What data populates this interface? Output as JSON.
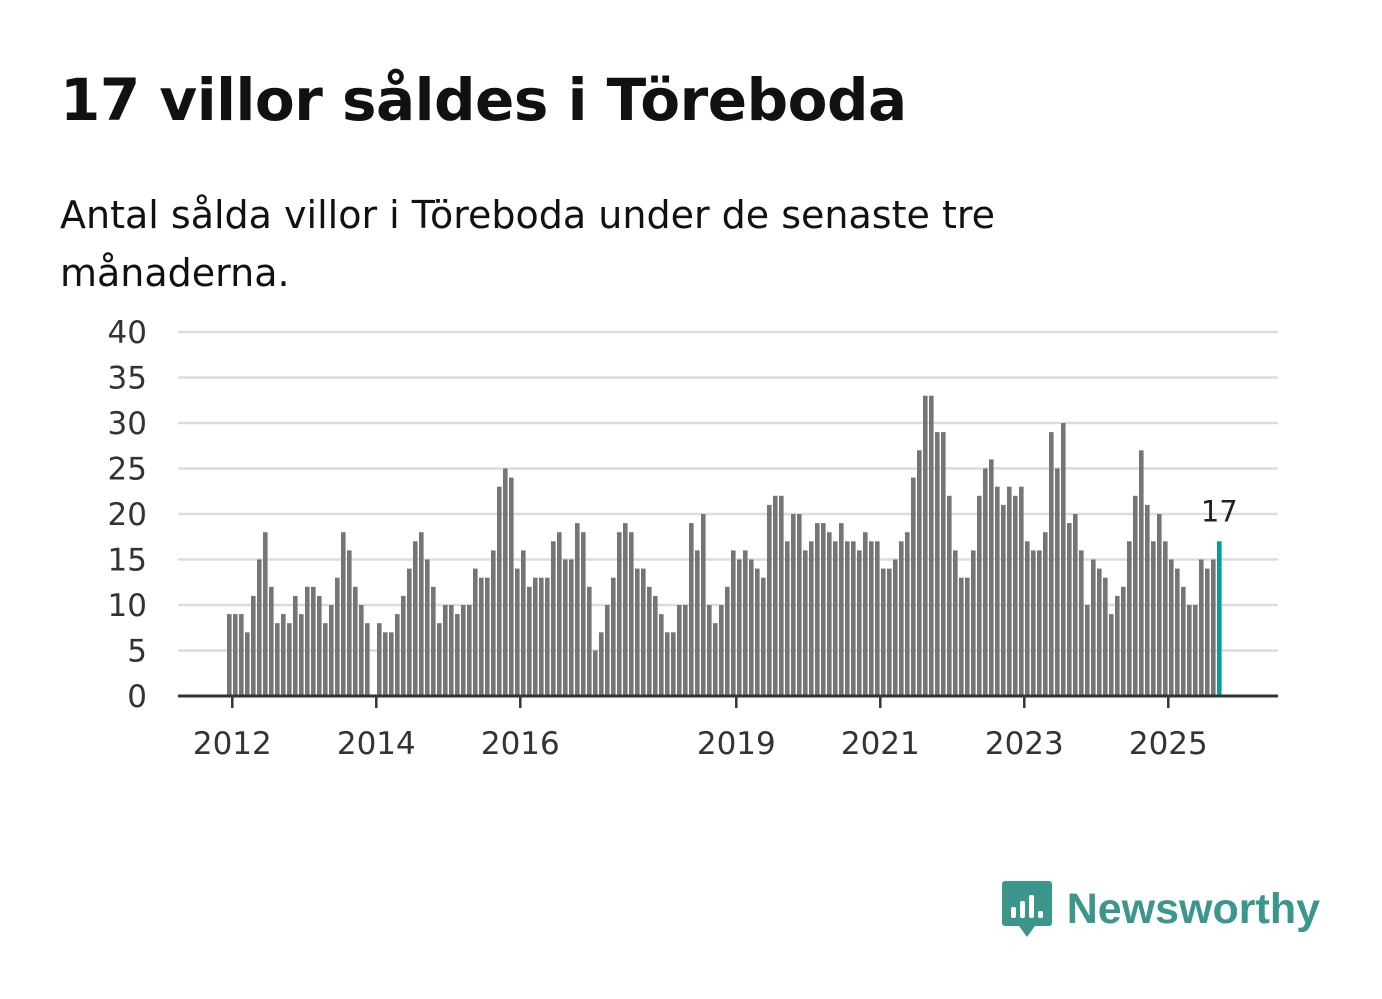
{
  "title": "17 villor såldes i Töreboda",
  "subtitle": "Antal sålda villor i Töreboda under de senaste tre månaderna.",
  "brand": {
    "name": "Newsworthy",
    "icon": "newsworthy-logo-icon"
  },
  "colors": {
    "bar": "#757477",
    "highlight": "#0e9a9a",
    "grid": "#dcdcdc",
    "axis": "#333333",
    "brand": "#3c968c"
  },
  "chart_data": {
    "type": "bar",
    "title": "17 villor såldes i Töreboda",
    "xlabel": "",
    "ylabel": "",
    "ylim": [
      0,
      40
    ],
    "yticks": [
      0,
      5,
      10,
      15,
      20,
      25,
      30,
      35,
      40
    ],
    "grid": true,
    "x_start_year": 2011,
    "x_start_month": 12,
    "xticks": [
      {
        "label": "2012",
        "index": 1
      },
      {
        "label": "2014",
        "index": 25
      },
      {
        "label": "2016",
        "index": 49
      },
      {
        "label": "2019",
        "index": 85
      },
      {
        "label": "2021",
        "index": 109
      },
      {
        "label": "2023",
        "index": 133
      },
      {
        "label": "2025",
        "index": 157
      }
    ],
    "values": [
      9,
      9,
      9,
      7,
      11,
      15,
      18,
      12,
      8,
      9,
      8,
      11,
      9,
      12,
      12,
      11,
      8,
      10,
      13,
      18,
      16,
      12,
      10,
      8,
      null,
      8,
      7,
      7,
      9,
      11,
      14,
      17,
      18,
      15,
      12,
      8,
      10,
      10,
      9,
      10,
      10,
      14,
      13,
      13,
      16,
      23,
      25,
      24,
      14,
      16,
      12,
      13,
      13,
      13,
      17,
      18,
      15,
      15,
      19,
      18,
      12,
      5,
      7,
      10,
      13,
      18,
      19,
      18,
      14,
      14,
      12,
      11,
      9,
      7,
      7,
      10,
      10,
      19,
      16,
      20,
      10,
      8,
      10,
      12,
      16,
      15,
      16,
      15,
      14,
      13,
      21,
      22,
      22,
      17,
      20,
      20,
      16,
      17,
      19,
      19,
      18,
      17,
      19,
      17,
      17,
      16,
      18,
      17,
      17,
      14,
      14,
      15,
      17,
      18,
      24,
      27,
      33,
      33,
      29,
      29,
      22,
      16,
      13,
      13,
      16,
      22,
      25,
      26,
      23,
      21,
      23,
      22,
      23,
      17,
      16,
      16,
      18,
      29,
      25,
      30,
      19,
      20,
      16,
      10,
      15,
      14,
      13,
      9,
      11,
      12,
      17,
      22,
      27,
      21,
      17,
      20,
      17,
      15,
      14,
      12,
      10,
      10,
      15,
      14,
      15,
      17
    ],
    "highlight_last": true,
    "annotation": {
      "label": "17",
      "index": 165
    }
  }
}
